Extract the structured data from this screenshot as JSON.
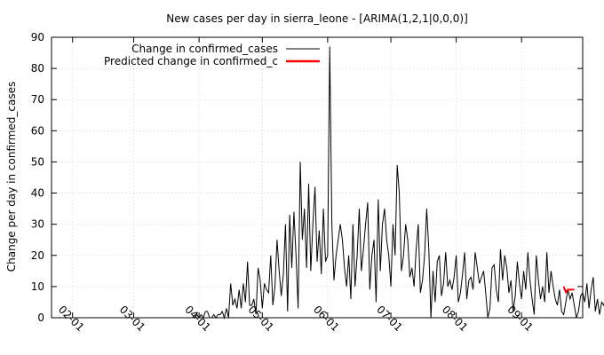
{
  "chart_data": {
    "type": "line",
    "title": "New cases per day in sierra_leone -  [ARIMA(1,2,1|0,0,0)]",
    "xlabel": "",
    "ylabel": "Change per day in confirmed_cases",
    "xlim": [
      "2020-01-22",
      "2020-09-30"
    ],
    "ylim": [
      0,
      90
    ],
    "yticks": [
      0,
      10,
      20,
      30,
      40,
      50,
      60,
      70,
      80,
      90
    ],
    "xticks": [
      {
        "date": "2020-02-01",
        "label": "02-01"
      },
      {
        "date": "2020-03-01",
        "label": "03-01"
      },
      {
        "date": "2020-04-01",
        "label": "04-01"
      },
      {
        "date": "2020-05-01",
        "label": "05-01"
      },
      {
        "date": "2020-06-01",
        "label": "06-01"
      },
      {
        "date": "2020-07-01",
        "label": "07-01"
      },
      {
        "date": "2020-08-01",
        "label": "08-01"
      },
      {
        "date": "2020-09-01",
        "label": "09-01"
      }
    ],
    "grid": true,
    "legend_position": "top-left",
    "series": [
      {
        "name": "Change in confirmed_cases",
        "color": "#000000",
        "start_date": "2020-01-22",
        "values": [
          0,
          0,
          0,
          0,
          0,
          0,
          0,
          0,
          0,
          0,
          0,
          0,
          0,
          0,
          0,
          0,
          0,
          0,
          0,
          0,
          0,
          0,
          0,
          0,
          0,
          0,
          0,
          0,
          0,
          0,
          0,
          0,
          0,
          0,
          0,
          0,
          0,
          0,
          0,
          0,
          0,
          0,
          0,
          0,
          0,
          0,
          0,
          0,
          0,
          0,
          0,
          0,
          0,
          0,
          0,
          0,
          0,
          0,
          0,
          0,
          0,
          0,
          0,
          0,
          0,
          0,
          0,
          0,
          0,
          1,
          0,
          1,
          0,
          2,
          2,
          0,
          0,
          1,
          0,
          1,
          1,
          2,
          0,
          3,
          0,
          11,
          4,
          6,
          3,
          9,
          3,
          11,
          5,
          18,
          4,
          4,
          6,
          1,
          16,
          12,
          3,
          11,
          9,
          8,
          20,
          4,
          10,
          25,
          15,
          7,
          14,
          30,
          2,
          33,
          16,
          34,
          20,
          3,
          50,
          25,
          35,
          16,
          43,
          15,
          30,
          42,
          18,
          28,
          14,
          35,
          18,
          20,
          87,
          30,
          12,
          20,
          25,
          30,
          25,
          16,
          10,
          20,
          6,
          30,
          10,
          20,
          35,
          15,
          22,
          30,
          37,
          9,
          20,
          25,
          5,
          38,
          15,
          30,
          35,
          25,
          20,
          10,
          30,
          20,
          49,
          40,
          15,
          20,
          30,
          25,
          13,
          16,
          10,
          22,
          30,
          8,
          12,
          20,
          35,
          22,
          0,
          15,
          5,
          18,
          20,
          7,
          11,
          21,
          10,
          12,
          9,
          13,
          20,
          5,
          8,
          14,
          21,
          6,
          12,
          13,
          9,
          21,
          16,
          11,
          13,
          15,
          8,
          0,
          3,
          16,
          17,
          9,
          5,
          22,
          12,
          20,
          16,
          8,
          12,
          2,
          7,
          18,
          11,
          6,
          15,
          9,
          21,
          12,
          6,
          1,
          20,
          12,
          6,
          10,
          5,
          21,
          8,
          15,
          10,
          6,
          4,
          9,
          2,
          1,
          5,
          9,
          6,
          8,
          4,
          0,
          2,
          7,
          8,
          5,
          11,
          3,
          9,
          13,
          2,
          6,
          1,
          5,
          4,
          7,
          12,
          3,
          8,
          1,
          5,
          9,
          3,
          6,
          1,
          2,
          14,
          4,
          10,
          6,
          12,
          3,
          18,
          8,
          2,
          15,
          6,
          10
        ]
      },
      {
        "name": "Predicted change in confirmed_c",
        "color": "#ff0000",
        "start_date": "2020-09-21",
        "values": [
          10,
          8.2,
          9,
          9,
          9,
          9
        ]
      }
    ]
  }
}
